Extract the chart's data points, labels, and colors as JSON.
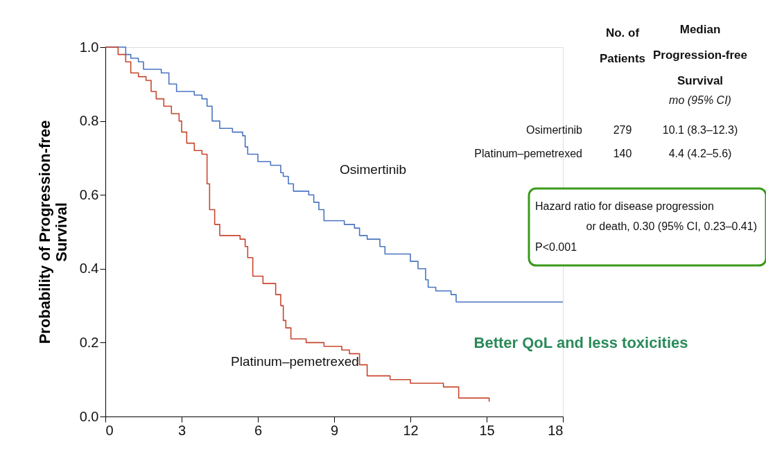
{
  "chart_data": {
    "type": "step",
    "ylabel": "Probability of Progression-free\nSurvival",
    "xlim": [
      0,
      18
    ],
    "xticks": [
      0,
      3,
      6,
      9,
      12,
      15,
      18
    ],
    "ylim": [
      0,
      1
    ],
    "yticks": [
      {
        "value": 0,
        "label": "0.0"
      },
      0.2,
      0.4,
      0.6,
      0.8,
      {
        "value": 1,
        "label": "1.0"
      }
    ],
    "grid": false,
    "legend": false,
    "series": [
      {
        "name": "Osimertinib",
        "color": "#4a74c0",
        "x": [
          0,
          0.6,
          0.8,
          1.0,
          1.3,
          1.5,
          2.2,
          2.5,
          2.8,
          3.5,
          3.8,
          4.0,
          4.2,
          4.5,
          5.0,
          5.4,
          5.5,
          5.6,
          6.0,
          6.5,
          6.9,
          7.0,
          7.2,
          7.4,
          8.0,
          8.2,
          8.4,
          8.6,
          9.4,
          9.8,
          10.0,
          10.3,
          10.8,
          11.0,
          12.0,
          12.3,
          12.6,
          12.7,
          13.0,
          13.6,
          13.8,
          18.0
        ],
        "values": [
          1.0,
          1.0,
          0.98,
          0.97,
          0.96,
          0.94,
          0.93,
          0.9,
          0.88,
          0.87,
          0.86,
          0.84,
          0.8,
          0.78,
          0.77,
          0.76,
          0.73,
          0.71,
          0.69,
          0.68,
          0.66,
          0.65,
          0.63,
          0.61,
          0.6,
          0.58,
          0.56,
          0.53,
          0.52,
          0.51,
          0.49,
          0.48,
          0.46,
          0.44,
          0.42,
          0.4,
          0.37,
          0.35,
          0.34,
          0.33,
          0.31,
          0.31
        ]
      },
      {
        "name": "Platinum–pemetrexed",
        "color": "#c8462e",
        "x": [
          0,
          0.5,
          0.8,
          1.0,
          1.3,
          1.6,
          1.8,
          2.0,
          2.3,
          2.6,
          2.9,
          3.0,
          3.2,
          3.5,
          3.8,
          4.0,
          4.1,
          4.3,
          4.5,
          5.3,
          5.5,
          5.6,
          5.8,
          6.2,
          6.7,
          6.9,
          7.0,
          7.1,
          7.3,
          7.9,
          8.6,
          9.3,
          9.6,
          10.0,
          10.3,
          11.2,
          12.0,
          13.3,
          13.9,
          15.1
        ],
        "values": [
          1.0,
          0.98,
          0.96,
          0.93,
          0.92,
          0.91,
          0.88,
          0.86,
          0.84,
          0.82,
          0.8,
          0.77,
          0.74,
          0.72,
          0.71,
          0.63,
          0.56,
          0.52,
          0.49,
          0.48,
          0.46,
          0.43,
          0.38,
          0.36,
          0.33,
          0.3,
          0.26,
          0.24,
          0.21,
          0.2,
          0.19,
          0.18,
          0.17,
          0.14,
          0.11,
          0.1,
          0.09,
          0.08,
          0.05,
          0.04
        ]
      }
    ],
    "annotations": [
      "No. of\nPatients",
      "Median\nProgression-free\nSurvival",
      "mo (95% CI)",
      "Osimertinib",
      "279",
      "10.1 (8.3–12.3)",
      "Platinum–pemetrexed",
      "140",
      "4.4 (4.2–5.6)",
      "Hazard ratio for disease progression",
      "or death, 0.30 (95% CI, 0.23–0.41)",
      "P<0.001",
      "Better QoL and less toxicities"
    ]
  }
}
